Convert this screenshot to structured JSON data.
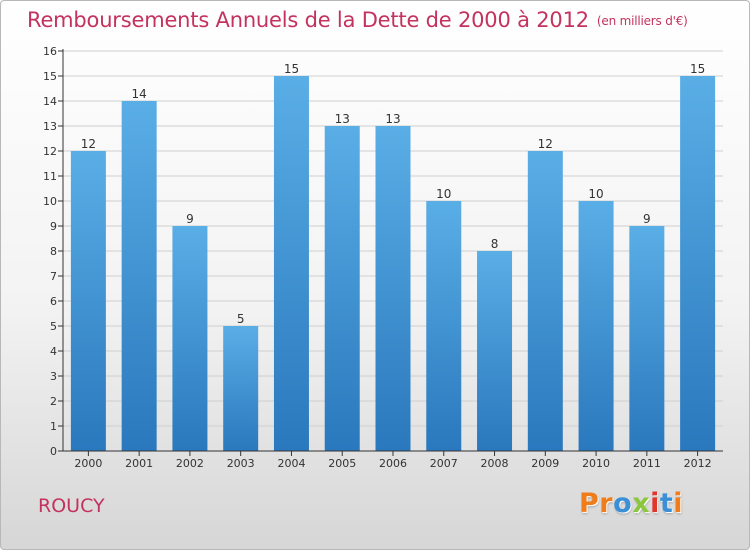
{
  "header": {
    "title": "Remboursements Annuels de la Dette de 2000 à 2012",
    "unit": "(en milliers d'€)"
  },
  "footer": {
    "commune": "ROUCY",
    "brand": "Proxiti",
    "brand_colors": [
      "#f07d1c",
      "#f07d1c",
      "#3b8fd6",
      "#8cc63e",
      "#e2342b",
      "#3b8fd6",
      "#f07d1c"
    ]
  },
  "colors": {
    "title": "#c4325f",
    "bar_top": "#5aaee6",
    "bar_bottom": "#2a78bd",
    "grid": "#cfcfcf",
    "axis": "#333333"
  },
  "chart_data": {
    "type": "bar",
    "title": "Remboursements Annuels de la Dette de 2000 à 2012",
    "xlabel": "",
    "ylabel": "",
    "categories": [
      "2000",
      "2001",
      "2002",
      "2003",
      "2004",
      "2005",
      "2006",
      "2007",
      "2008",
      "2009",
      "2010",
      "2011",
      "2012"
    ],
    "values": [
      12,
      14,
      9,
      5,
      15,
      13,
      13,
      10,
      8,
      12,
      10,
      9,
      15
    ],
    "data_labels": [
      "12",
      "14",
      "9",
      "5",
      "15",
      "13",
      "13",
      "10",
      "8",
      "12",
      "10",
      "9",
      "15"
    ],
    "ylim": [
      0,
      16
    ],
    "yticks": [
      0,
      1,
      2,
      3,
      4,
      5,
      6,
      7,
      8,
      9,
      10,
      11,
      12,
      13,
      14,
      15,
      16
    ],
    "grid": true
  }
}
